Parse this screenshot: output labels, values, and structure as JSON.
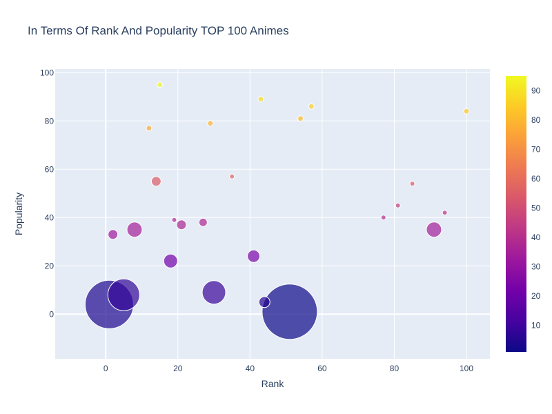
{
  "chart_data": {
    "type": "scatter",
    "title": "In Terms Of Rank And Popularity TOP 100 Animes",
    "xlabel": "Rank",
    "ylabel": "Popularity",
    "xlim": [
      -14,
      106.5
    ],
    "ylim": [
      -18.5,
      101.5
    ],
    "xticks": [
      0,
      20,
      40,
      60,
      80,
      100
    ],
    "yticks": [
      0,
      20,
      40,
      60,
      80,
      100
    ],
    "grid": true,
    "colorbar": {
      "min": 1,
      "max": 95,
      "ticks": [
        10,
        20,
        30,
        40,
        50,
        60,
        70,
        80,
        90
      ]
    },
    "points": [
      {
        "x": 1,
        "y": 4,
        "color_value": 4,
        "size": 35
      },
      {
        "x": 2,
        "y": 33,
        "color_value": 33,
        "size": 7
      },
      {
        "x": 5,
        "y": 8,
        "color_value": 8,
        "size": 23
      },
      {
        "x": 8,
        "y": 35,
        "color_value": 35,
        "size": 11
      },
      {
        "x": 12,
        "y": 77,
        "color_value": 77,
        "size": 4
      },
      {
        "x": 14,
        "y": 55,
        "color_value": 55,
        "size": 7
      },
      {
        "x": 15,
        "y": 95,
        "color_value": 95,
        "size": 4
      },
      {
        "x": 18,
        "y": 22,
        "color_value": 22,
        "size": 10
      },
      {
        "x": 19,
        "y": 39,
        "color_value": 39,
        "size": 3.5
      },
      {
        "x": 21,
        "y": 37,
        "color_value": 37,
        "size": 7
      },
      {
        "x": 27,
        "y": 38,
        "color_value": 38,
        "size": 6
      },
      {
        "x": 29,
        "y": 79,
        "color_value": 79,
        "size": 4
      },
      {
        "x": 30,
        "y": 9,
        "color_value": 9,
        "size": 17
      },
      {
        "x": 35,
        "y": 57,
        "color_value": 57,
        "size": 3.5
      },
      {
        "x": 41,
        "y": 24,
        "color_value": 24,
        "size": 9
      },
      {
        "x": 43,
        "y": 89,
        "color_value": 89,
        "size": 4
      },
      {
        "x": 44,
        "y": 5,
        "color_value": 5,
        "size": 8
      },
      {
        "x": 51,
        "y": 1,
        "color_value": 1,
        "size": 40
      },
      {
        "x": 54,
        "y": 81,
        "color_value": 81,
        "size": 4
      },
      {
        "x": 57,
        "y": 86,
        "color_value": 86,
        "size": 4
      },
      {
        "x": 77,
        "y": 40,
        "color_value": 40,
        "size": 3.5
      },
      {
        "x": 81,
        "y": 45,
        "color_value": 45,
        "size": 3.5
      },
      {
        "x": 85,
        "y": 54,
        "color_value": 54,
        "size": 3.5
      },
      {
        "x": 91,
        "y": 35,
        "color_value": 35,
        "size": 11
      },
      {
        "x": 94,
        "y": 42,
        "color_value": 42,
        "size": 3.5
      },
      {
        "x": 100,
        "y": 84,
        "color_value": 84,
        "size": 4
      }
    ]
  }
}
